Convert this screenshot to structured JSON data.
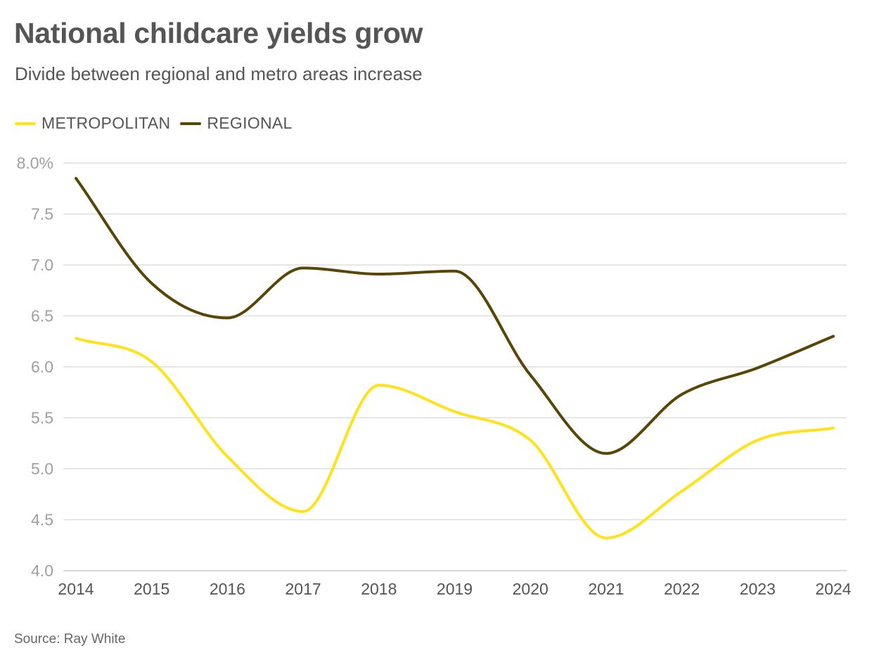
{
  "title": "National childcare yields grow",
  "subtitle": "Divide between regional and metro areas increase",
  "source": "Source: Ray White",
  "colors": {
    "metropolitan": "#ffe219",
    "regional": "#574606",
    "grid": "#dddddd",
    "y_tick": "#a0a0a0",
    "x_tick": "#555555"
  },
  "chart_data": {
    "type": "line",
    "title": "National childcare yields grow",
    "subtitle": "Divide between regional and metro areas increase",
    "xlabel": "",
    "ylabel": "",
    "x": [
      "2014",
      "2015",
      "2016",
      "2017",
      "2018",
      "2019",
      "2020",
      "2021",
      "2022",
      "2023",
      "2024"
    ],
    "y_ticks": [
      "8.0%",
      "7.5",
      "7.0",
      "6.5",
      "6.0",
      "5.5",
      "5.0",
      "4.5",
      "4.0"
    ],
    "y_tick_values": [
      8.0,
      7.5,
      7.0,
      6.5,
      6.0,
      5.5,
      5.0,
      4.5,
      4.0
    ],
    "ylim": [
      4.0,
      8.0
    ],
    "grid": true,
    "legend_position": "top-left",
    "series": [
      {
        "name": "METROPOLITAN",
        "color": "#ffe219",
        "values": [
          6.28,
          6.05,
          5.12,
          4.58,
          5.82,
          5.56,
          5.28,
          4.32,
          4.78,
          5.28,
          5.4
        ]
      },
      {
        "name": "REGIONAL",
        "color": "#574606",
        "values": [
          7.85,
          6.82,
          6.48,
          6.97,
          6.91,
          6.94,
          5.92,
          5.15,
          5.73,
          5.99,
          6.3
        ]
      }
    ]
  }
}
